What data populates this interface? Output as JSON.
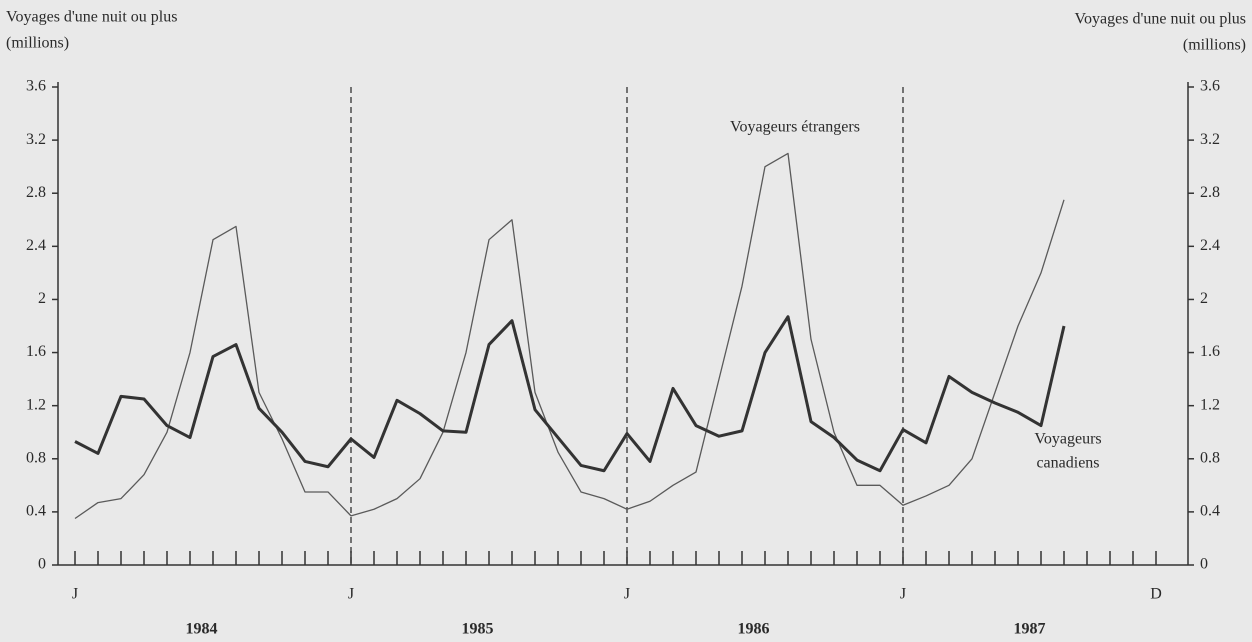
{
  "chart_data": {
    "type": "line",
    "y_axis_label": [
      "Voyages d'une nuit ou plus",
      "(millions)"
    ],
    "y2_axis_label": [
      "Voyages d'une nuit ou plus",
      "(millions)"
    ],
    "categories": [
      "J",
      null,
      null,
      null,
      null,
      null,
      null,
      null,
      null,
      null,
      null,
      null,
      "J",
      null,
      null,
      null,
      null,
      null,
      null,
      null,
      null,
      null,
      null,
      null,
      "J",
      null,
      null,
      null,
      null,
      null,
      null,
      null,
      null,
      null,
      null,
      null,
      "J",
      null,
      null,
      null,
      null,
      null,
      null,
      null,
      null,
      null,
      null,
      "D"
    ],
    "year_labels": [
      "1984",
      "1985",
      "1986",
      "1987"
    ],
    "series": [
      {
        "name": "Voyageurs étrangers",
        "color": "#5a5a5a",
        "width": 1.3,
        "values": [
          0.35,
          0.47,
          0.5,
          0.68,
          1.0,
          1.6,
          2.45,
          2.55,
          1.3,
          0.95,
          0.55,
          0.55,
          0.37,
          0.42,
          0.5,
          0.65,
          1.0,
          1.6,
          2.45,
          2.6,
          1.3,
          0.85,
          0.55,
          0.5,
          0.42,
          0.48,
          0.6,
          0.7,
          1.4,
          2.1,
          3.0,
          3.1,
          1.7,
          1.0,
          0.6,
          0.6,
          0.45,
          0.52,
          0.6,
          0.8,
          1.3,
          1.8,
          2.2,
          2.75,
          null,
          null,
          null,
          null
        ]
      },
      {
        "name": "Voyageurs canadiens",
        "color": "#333333",
        "width": 3,
        "values": [
          0.93,
          0.84,
          1.27,
          1.25,
          1.05,
          0.96,
          1.57,
          1.66,
          1.18,
          1.0,
          0.78,
          0.74,
          0.95,
          0.81,
          1.24,
          1.14,
          1.01,
          1.0,
          1.66,
          1.84,
          1.17,
          0.96,
          0.75,
          0.71,
          0.99,
          0.78,
          1.33,
          1.05,
          0.97,
          1.01,
          1.6,
          1.87,
          1.08,
          0.96,
          0.79,
          0.71,
          1.02,
          0.92,
          1.42,
          1.3,
          1.22,
          1.15,
          1.05,
          1.8,
          null,
          null,
          null,
          null
        ]
      }
    ],
    "annotations": [
      [
        "Voyageurs étrangers"
      ],
      [
        "Voyageurs",
        "canadiens"
      ]
    ],
    "ylim": [
      0,
      3.6
    ],
    "yticks": [
      0,
      0.4,
      0.8,
      1.2,
      1.6,
      2.0,
      2.4,
      2.8,
      3.2,
      3.6
    ],
    "y2lim": [
      0,
      3.6
    ],
    "y2ticks": [
      0,
      0.4,
      0.8,
      1.2,
      1.6,
      2.0,
      2.4,
      2.8,
      3.2,
      3.6
    ],
    "grid": false
  }
}
